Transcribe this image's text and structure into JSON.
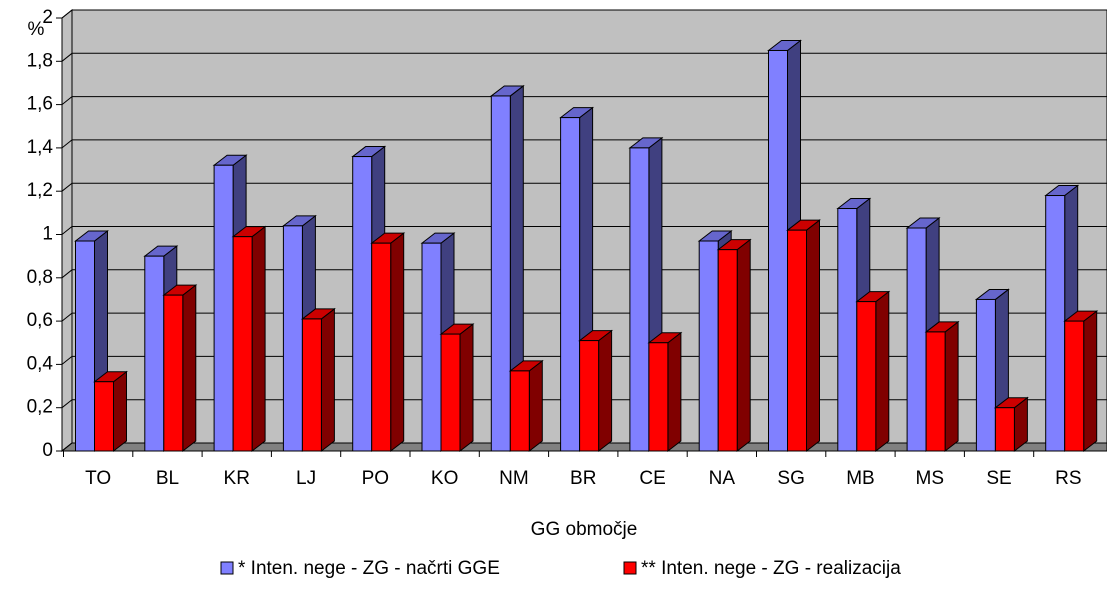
{
  "chart_data": {
    "type": "bar3d",
    "y_label": "%",
    "x_label": "GG območje",
    "categories": [
      "TO",
      "BL",
      "KR",
      "LJ",
      "PO",
      "KO",
      "NM",
      "BR",
      "CE",
      "NA",
      "SG",
      "MB",
      "MS",
      "SE",
      "RS"
    ],
    "series": [
      {
        "name": "* Inten. nege - ZG - načrti GGE",
        "color": "#8080ff",
        "values": [
          0.97,
          0.9,
          1.32,
          1.04,
          1.36,
          0.96,
          1.64,
          1.54,
          1.4,
          0.97,
          1.85,
          1.12,
          1.03,
          0.7,
          1.18
        ]
      },
      {
        "name": "** Inten. nege - ZG - realizacija",
        "color": "#ff0000",
        "values": [
          0.32,
          0.72,
          0.99,
          0.61,
          0.96,
          0.54,
          0.37,
          0.51,
          0.5,
          0.93,
          1.02,
          0.69,
          0.55,
          0.2,
          0.6
        ]
      }
    ],
    "ylim": [
      0,
      2
    ],
    "yticks": [
      0,
      {
        "value": 0.2,
        "label": "0,2"
      },
      {
        "value": 0.4,
        "label": "0,4"
      },
      {
        "value": 0.6,
        "label": "0,6"
      },
      {
        "value": 0.8,
        "label": "0,8"
      },
      1,
      {
        "value": 1.2,
        "label": "1,2"
      },
      {
        "value": 1.4,
        "label": "1,4"
      },
      {
        "value": 1.6,
        "label": "1,6"
      },
      {
        "value": 1.8,
        "label": "1,8"
      },
      2
    ],
    "grid": true
  }
}
